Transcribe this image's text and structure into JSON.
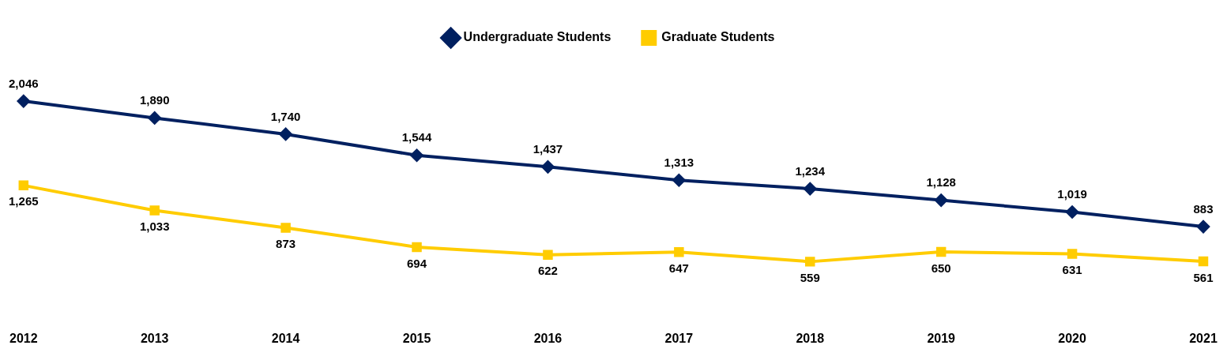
{
  "chart_data": {
    "type": "line",
    "categories": [
      "2012",
      "2013",
      "2014",
      "2015",
      "2016",
      "2017",
      "2018",
      "2019",
      "2020",
      "2021"
    ],
    "series": [
      {
        "name": "Undergraduate Students",
        "color": "#002060",
        "marker": "diamond",
        "values": [
          2046,
          1890,
          1740,
          1544,
          1437,
          1313,
          1234,
          1128,
          1019,
          883
        ],
        "value_labels": [
          "2,046",
          "1,890",
          "1,740",
          "1,544",
          "1,437",
          "1,313",
          "1,234",
          "1,128",
          "1,019",
          "883"
        ]
      },
      {
        "name": "Graduate Students",
        "color": "#ffcc00",
        "marker": "square",
        "values": [
          1265,
          1033,
          873,
          694,
          622,
          647,
          559,
          650,
          631,
          561
        ],
        "value_labels": [
          "1,265",
          "1,033",
          "873",
          "694",
          "622",
          "647",
          "559",
          "650",
          "631",
          "561"
        ]
      }
    ],
    "legend": "top",
    "grid": false,
    "tick_labels": "x"
  }
}
